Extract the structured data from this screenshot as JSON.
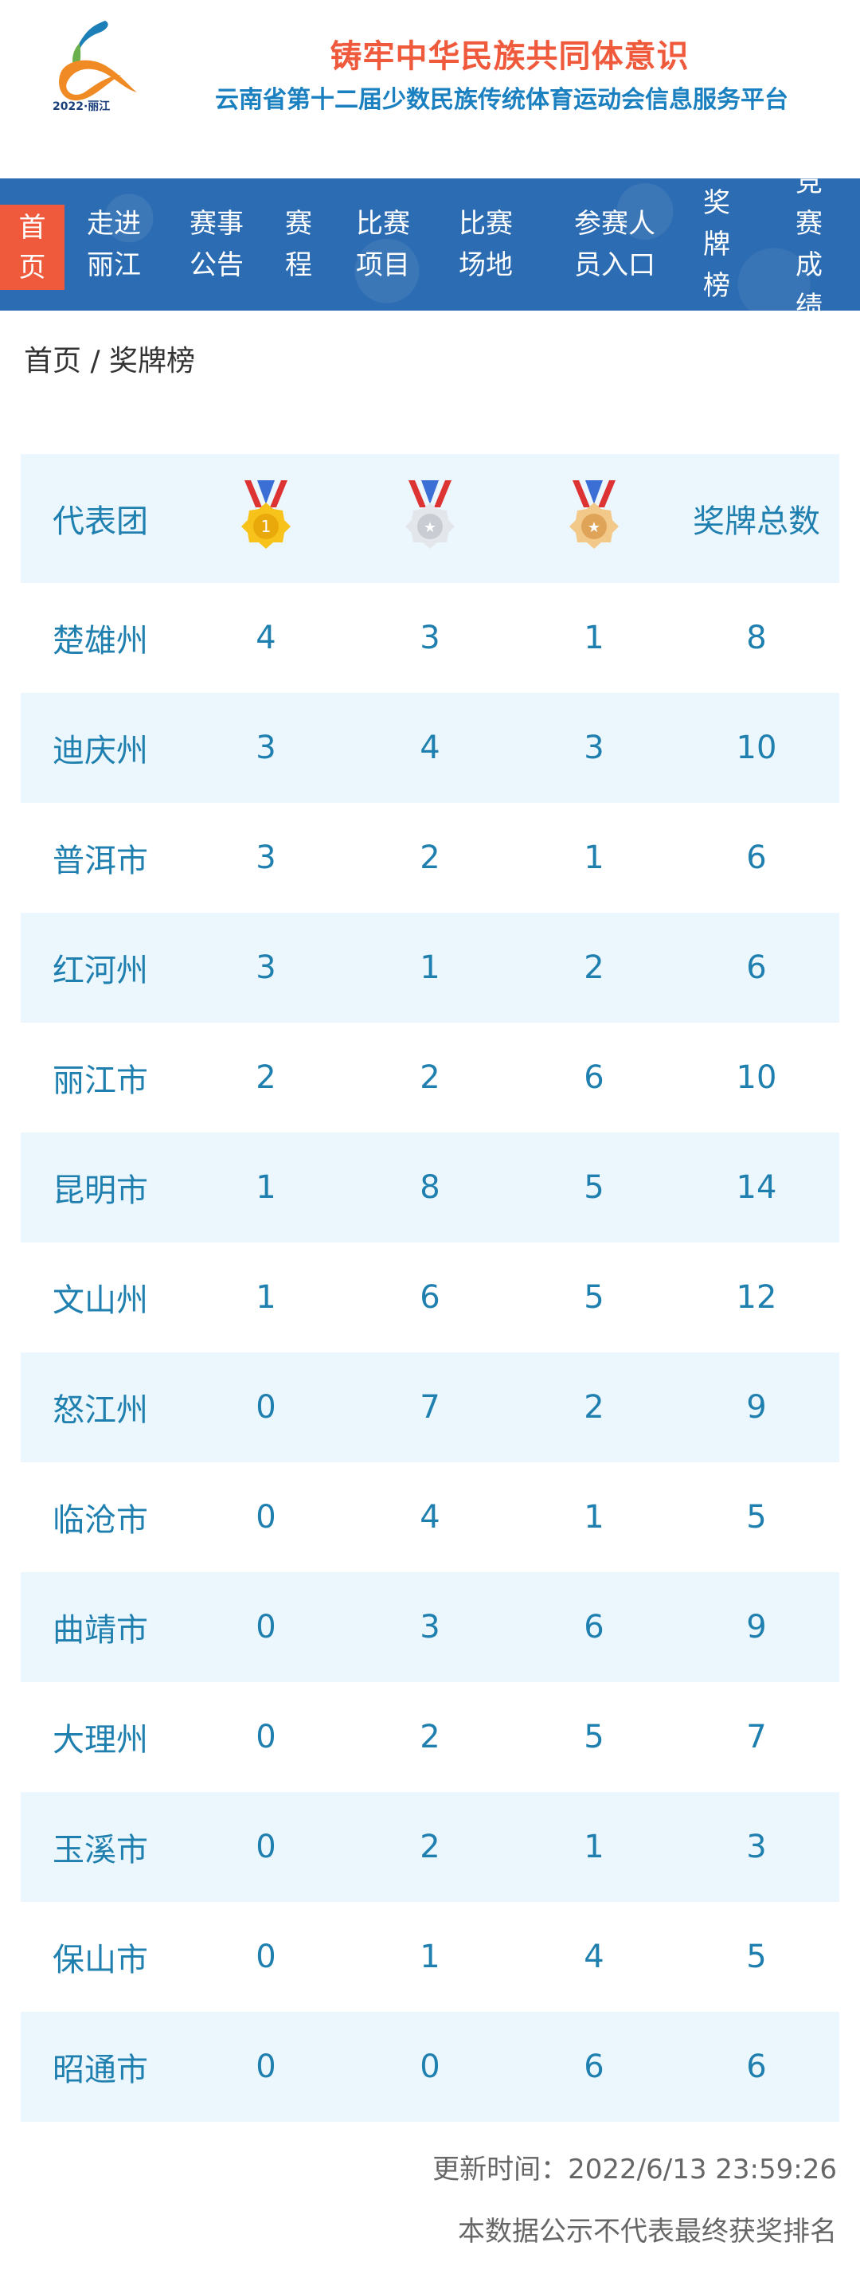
{
  "header": {
    "logo_text": "2022·丽江",
    "slogan": "铸牢中华民族共同体意识",
    "platform_title": "云南省第十二届少数民族传统体育运动会信息服务平台"
  },
  "nav": [
    {
      "label": "首\n页",
      "active": true
    },
    {
      "label": "走进\n丽江"
    },
    {
      "label": "赛事\n公告"
    },
    {
      "label": "赛\n程"
    },
    {
      "label": "比赛\n项目"
    },
    {
      "label": "比赛\n场地"
    },
    {
      "label": "参赛人\n员入口"
    },
    {
      "label": "奖\n牌\n榜"
    },
    {
      "label": "竞赛\n成绩"
    }
  ],
  "breadcrumb": "首页 / 奖牌榜",
  "table": {
    "headers": {
      "team": "代表团",
      "gold": "gold-medal-icon",
      "silver": "silver-medal-icon",
      "bronze": "bronze-medal-icon",
      "total": "奖牌总数"
    },
    "rows": [
      [
        "楚雄州",
        "4",
        "3",
        "1",
        "8"
      ],
      [
        "迪庆州",
        "3",
        "4",
        "3",
        "10"
      ],
      [
        "普洱市",
        "3",
        "2",
        "1",
        "6"
      ],
      [
        "红河州",
        "3",
        "1",
        "2",
        "6"
      ],
      [
        "丽江市",
        "2",
        "2",
        "6",
        "10"
      ],
      [
        "昆明市",
        "1",
        "8",
        "5",
        "14"
      ],
      [
        "文山州",
        "1",
        "6",
        "5",
        "12"
      ],
      [
        "怒江州",
        "0",
        "7",
        "2",
        "9"
      ],
      [
        "临沧市",
        "0",
        "4",
        "1",
        "5"
      ],
      [
        "曲靖市",
        "0",
        "3",
        "6",
        "9"
      ],
      [
        "大理州",
        "0",
        "2",
        "5",
        "7"
      ],
      [
        "玉溪市",
        "0",
        "2",
        "1",
        "3"
      ],
      [
        "保山市",
        "0",
        "1",
        "4",
        "5"
      ],
      [
        "昭通市",
        "0",
        "0",
        "6",
        "6"
      ]
    ]
  },
  "footer": {
    "updated": "更新时间：2022/6/13 23:59:26",
    "disclaimer": "本数据公示不代表最终获奖排名"
  },
  "colors": {
    "accent": "#f05a3c",
    "nav_bg": "#2c6cb2",
    "text": "#1f80b0",
    "row_alt": "#ebf6fd"
  }
}
